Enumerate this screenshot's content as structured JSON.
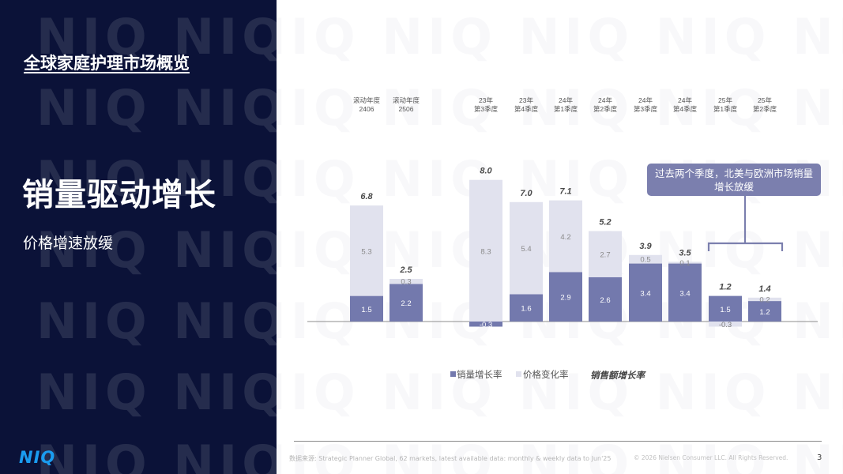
{
  "left_panel": {
    "title": "全球家庭护理市场概览",
    "headline": "销量驱动增长",
    "subheadline": "价格增速放缓",
    "watermark": "NIQ",
    "logo": "NIQ"
  },
  "callout": {
    "text": "过去两个季度，北美与欧洲市场销量增长放缓"
  },
  "footer": {
    "source": "数据来源: Strategic Planner Global, 62 markets, latest available data: monthly & weekly data to Jun'25",
    "copyright": "© 2026 Nielsen Consumer LLC. All Rights Reserved.",
    "page_number": "3"
  },
  "colors": {
    "panel_bg": "#0b1238",
    "volume": "#7379ad",
    "price": "#e1e2ee",
    "logo": "#1a9cf0",
    "callout": "#7b7fae"
  },
  "chart_data": {
    "type": "bar",
    "stacked": true,
    "categories": [
      [
        "滚动年度",
        "2406"
      ],
      [
        "滚动年度",
        "2506"
      ],
      [
        "23年",
        "第3季度"
      ],
      [
        "23年",
        "第4季度"
      ],
      [
        "24年",
        "第1季度"
      ],
      [
        "24年",
        "第2季度"
      ],
      [
        "24年",
        "第3季度"
      ],
      [
        "24年",
        "第4季度"
      ],
      [
        "25年",
        "第1季度"
      ],
      [
        "25年",
        "第2季度"
      ]
    ],
    "series": [
      {
        "name": "销量增长率",
        "values": [
          1.5,
          2.2,
          -0.3,
          1.6,
          2.9,
          2.6,
          3.4,
          3.4,
          1.5,
          1.2
        ]
      },
      {
        "name": "价格变化率",
        "values": [
          5.3,
          0.3,
          8.3,
          5.4,
          4.2,
          2.7,
          0.5,
          0.1,
          -0.3,
          0.2
        ]
      }
    ],
    "totals": {
      "name": "销售额增长率",
      "values": [
        "6.8",
        "2.5",
        "8.0",
        "7.0",
        "7.1",
        "5.2",
        "3.9",
        "3.5",
        "1.2",
        "1.4"
      ]
    },
    "volume_labels": [
      "1.5",
      "2.2",
      "-0.3",
      "1.6",
      "2.9",
      "2.6",
      "3.4",
      "3.4",
      "1.5",
      "1.2"
    ],
    "price_labels": [
      "5.3",
      "0.3",
      "8.3",
      "5.4",
      "4.2",
      "2.7",
      "0.5",
      "0.1",
      "-0.3",
      "0.2"
    ],
    "legend_position": "bottom",
    "grid": false
  }
}
